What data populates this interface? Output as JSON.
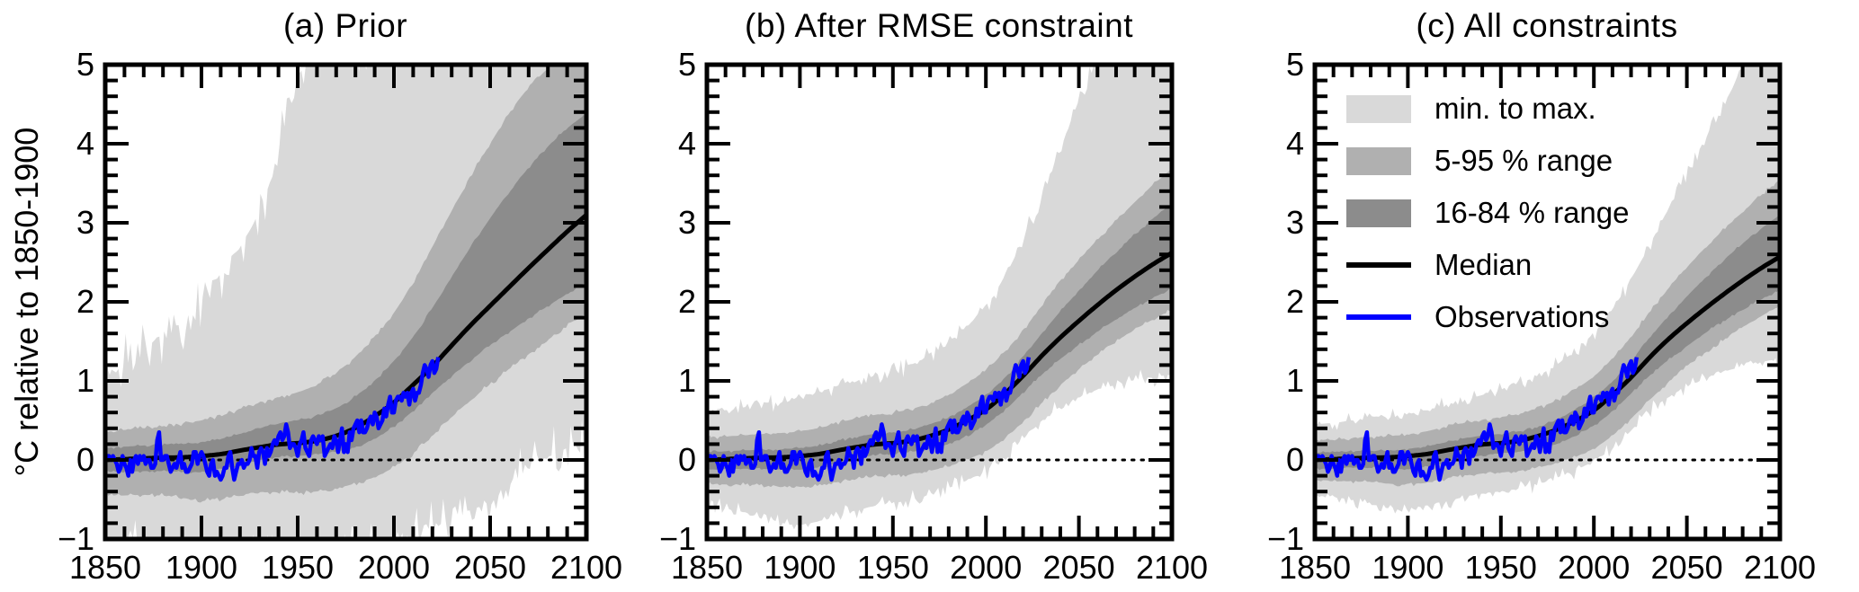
{
  "figure": {
    "y_axis_label": "°C relative to 1850-1900",
    "background": "#ffffff"
  },
  "colors": {
    "band_minmax": "#d9d9d9",
    "band_5_95": "#b0b0b0",
    "band_16_84": "#8c8c8c",
    "median": "#000000",
    "observations": "#0000ff",
    "axis": "#000000"
  },
  "chart_data": {
    "type": "area",
    "xlim": [
      1850,
      2100
    ],
    "ylim": [
      -1,
      5
    ],
    "x_ticks_major": [
      1850,
      1900,
      1950,
      2000,
      2050,
      2100
    ],
    "x_tick_minor_step": 10,
    "y_ticks_major": [
      -1,
      0,
      1,
      2,
      3,
      4,
      5
    ],
    "y_tick_labels": [
      "−1",
      "0",
      "1",
      "2",
      "3",
      "4",
      "5"
    ],
    "y_tick_minor_step": 0.2,
    "zero_line": 0,
    "grid": false,
    "legend_position": "upper-left-panel-c",
    "legend": [
      {
        "label": "min. to max.",
        "type": "patch",
        "color_key": "band_minmax"
      },
      {
        "label": "5-95 % range",
        "type": "patch",
        "color_key": "band_5_95"
      },
      {
        "label": "16-84 % range",
        "type": "patch",
        "color_key": "band_16_84"
      },
      {
        "label": "Median",
        "type": "line",
        "color_key": "median"
      },
      {
        "label": "Observations",
        "type": "line",
        "color_key": "observations"
      }
    ],
    "band_years": [
      1850,
      1860,
      1870,
      1880,
      1890,
      1900,
      1910,
      1920,
      1930,
      1940,
      1950,
      1960,
      1970,
      1980,
      1990,
      2000,
      2010,
      2020,
      2030,
      2040,
      2050,
      2060,
      2070,
      2080,
      2090,
      2100
    ],
    "panels": [
      {
        "title": "(a) Prior",
        "edge_jitter": 0.4,
        "mid_jitter": 0.035,
        "inner_jitter": 0.02,
        "min": [
          -1.2,
          -1.15,
          -1.1,
          -1.15,
          -1.2,
          -1.2,
          -1.15,
          -1.2,
          -1.2,
          -1.2,
          -1.2,
          -1.2,
          -1.2,
          -1.18,
          -1.15,
          -1.1,
          -1.0,
          -0.85,
          -0.72,
          -0.63,
          -0.55,
          -0.32,
          -0.1,
          0.05,
          0.15,
          0.25
        ],
        "p5": [
          -0.45,
          -0.45,
          -0.44,
          -0.45,
          -0.48,
          -0.52,
          -0.5,
          -0.45,
          -0.42,
          -0.4,
          -0.42,
          -0.4,
          -0.36,
          -0.3,
          -0.22,
          -0.1,
          0.08,
          0.3,
          0.55,
          0.76,
          0.96,
          1.15,
          1.34,
          1.52,
          1.69,
          1.85
        ],
        "p16": [
          -0.15,
          -0.15,
          -0.14,
          -0.14,
          -0.15,
          -0.16,
          -0.12,
          -0.06,
          0.0,
          0.04,
          0.05,
          0.07,
          0.1,
          0.16,
          0.26,
          0.42,
          0.62,
          0.85,
          1.06,
          1.26,
          1.45,
          1.62,
          1.79,
          1.95,
          2.1,
          2.25
        ],
        "median": [
          0.0,
          0.01,
          0.02,
          0.03,
          0.03,
          0.05,
          0.07,
          0.12,
          0.16,
          0.2,
          0.21,
          0.24,
          0.3,
          0.4,
          0.55,
          0.72,
          0.95,
          1.18,
          1.45,
          1.71,
          1.95,
          2.19,
          2.43,
          2.66,
          2.89,
          3.1
        ],
        "p84": [
          0.15,
          0.17,
          0.18,
          0.2,
          0.2,
          0.22,
          0.26,
          0.33,
          0.4,
          0.47,
          0.5,
          0.55,
          0.65,
          0.8,
          1.0,
          1.25,
          1.55,
          1.92,
          2.32,
          2.7,
          3.06,
          3.4,
          3.7,
          3.97,
          4.2,
          4.38
        ],
        "p95": [
          0.35,
          0.38,
          0.4,
          0.45,
          0.46,
          0.5,
          0.55,
          0.65,
          0.72,
          0.8,
          0.85,
          0.95,
          1.1,
          1.3,
          1.55,
          1.85,
          2.25,
          2.7,
          3.15,
          3.6,
          4.0,
          4.4,
          4.72,
          4.95,
          5.15,
          5.3
        ],
        "max": [
          1.05,
          1.2,
          1.35,
          1.65,
          1.55,
          2.05,
          2.35,
          2.7,
          3.1,
          3.9,
          4.9,
          5.3,
          5.3,
          5.3,
          5.3,
          5.3,
          5.3,
          5.3,
          5.3,
          5.3,
          5.3,
          5.3,
          5.3,
          5.3,
          5.3,
          5.3
        ]
      },
      {
        "title": "(b) After RMSE constraint",
        "edge_jitter": 0.13,
        "mid_jitter": 0.03,
        "inner_jitter": 0.02,
        "min": [
          -0.6,
          -0.62,
          -0.66,
          -0.73,
          -0.8,
          -0.83,
          -0.78,
          -0.7,
          -0.64,
          -0.58,
          -0.55,
          -0.5,
          -0.44,
          -0.36,
          -0.26,
          -0.14,
          0.03,
          0.26,
          0.5,
          0.68,
          0.8,
          0.89,
          0.96,
          1.01,
          1.05,
          1.08
        ],
        "p5": [
          -0.3,
          -0.31,
          -0.31,
          -0.32,
          -0.34,
          -0.36,
          -0.33,
          -0.28,
          -0.24,
          -0.21,
          -0.2,
          -0.18,
          -0.14,
          -0.08,
          0.0,
          0.1,
          0.26,
          0.48,
          0.72,
          0.95,
          1.15,
          1.33,
          1.5,
          1.65,
          1.78,
          1.9
        ],
        "p16": [
          -0.12,
          -0.12,
          -0.11,
          -0.11,
          -0.12,
          -0.13,
          -0.1,
          -0.04,
          0.02,
          0.06,
          0.08,
          0.1,
          0.14,
          0.2,
          0.3,
          0.44,
          0.62,
          0.85,
          1.08,
          1.28,
          1.46,
          1.62,
          1.78,
          1.92,
          2.05,
          2.17
        ],
        "median": [
          0.0,
          0.01,
          0.02,
          0.03,
          0.03,
          0.05,
          0.07,
          0.12,
          0.16,
          0.2,
          0.21,
          0.24,
          0.3,
          0.38,
          0.5,
          0.63,
          0.83,
          1.06,
          1.32,
          1.55,
          1.76,
          1.96,
          2.15,
          2.32,
          2.48,
          2.62
        ],
        "p84": [
          0.1,
          0.11,
          0.12,
          0.13,
          0.13,
          0.15,
          0.18,
          0.24,
          0.29,
          0.33,
          0.35,
          0.38,
          0.45,
          0.54,
          0.67,
          0.82,
          1.03,
          1.3,
          1.6,
          1.88,
          2.14,
          2.4,
          2.63,
          2.85,
          3.06,
          3.25
        ],
        "p95": [
          0.28,
          0.3,
          0.31,
          0.33,
          0.34,
          0.36,
          0.4,
          0.47,
          0.52,
          0.57,
          0.6,
          0.64,
          0.72,
          0.82,
          0.97,
          1.13,
          1.36,
          1.63,
          1.96,
          2.26,
          2.53,
          2.79,
          3.03,
          3.26,
          3.49,
          3.7
        ],
        "max": [
          0.6,
          0.63,
          0.66,
          0.74,
          0.7,
          0.8,
          0.86,
          0.93,
          0.99,
          1.06,
          1.12,
          1.2,
          1.32,
          1.48,
          1.68,
          1.95,
          2.3,
          2.78,
          3.35,
          3.95,
          4.55,
          5.1,
          5.3,
          5.3,
          5.3,
          5.3
        ]
      },
      {
        "title": "(c) All constraints",
        "edge_jitter": 0.11,
        "mid_jitter": 0.03,
        "inner_jitter": 0.02,
        "min": [
          -0.45,
          -0.47,
          -0.5,
          -0.56,
          -0.62,
          -0.63,
          -0.58,
          -0.52,
          -0.47,
          -0.42,
          -0.4,
          -0.36,
          -0.3,
          -0.23,
          -0.14,
          -0.02,
          0.14,
          0.37,
          0.62,
          0.8,
          0.93,
          1.03,
          1.12,
          1.18,
          1.24,
          1.28
        ],
        "p5": [
          -0.26,
          -0.27,
          -0.27,
          -0.28,
          -0.3,
          -0.32,
          -0.29,
          -0.24,
          -0.2,
          -0.17,
          -0.16,
          -0.14,
          -0.1,
          -0.04,
          0.04,
          0.14,
          0.3,
          0.52,
          0.76,
          0.98,
          1.18,
          1.36,
          1.53,
          1.68,
          1.82,
          1.95
        ],
        "p16": [
          -0.11,
          -0.11,
          -0.1,
          -0.1,
          -0.11,
          -0.12,
          -0.09,
          -0.03,
          0.02,
          0.06,
          0.08,
          0.1,
          0.14,
          0.2,
          0.3,
          0.43,
          0.61,
          0.84,
          1.07,
          1.27,
          1.44,
          1.61,
          1.76,
          1.9,
          2.03,
          2.15
        ],
        "median": [
          0.0,
          0.01,
          0.02,
          0.03,
          0.03,
          0.05,
          0.07,
          0.12,
          0.16,
          0.2,
          0.21,
          0.24,
          0.3,
          0.38,
          0.49,
          0.62,
          0.82,
          1.04,
          1.3,
          1.53,
          1.73,
          1.92,
          2.1,
          2.27,
          2.43,
          2.57
        ],
        "p84": [
          0.09,
          0.1,
          0.11,
          0.12,
          0.12,
          0.14,
          0.17,
          0.22,
          0.27,
          0.31,
          0.33,
          0.36,
          0.42,
          0.51,
          0.63,
          0.78,
          0.99,
          1.25,
          1.55,
          1.82,
          2.07,
          2.31,
          2.53,
          2.74,
          2.93,
          3.1
        ],
        "p95": [
          0.25,
          0.26,
          0.27,
          0.29,
          0.3,
          0.32,
          0.36,
          0.42,
          0.47,
          0.51,
          0.54,
          0.58,
          0.65,
          0.75,
          0.89,
          1.05,
          1.28,
          1.55,
          1.88,
          2.17,
          2.44,
          2.69,
          2.92,
          3.14,
          3.35,
          3.55
        ],
        "max": [
          0.45,
          0.47,
          0.5,
          0.56,
          0.53,
          0.58,
          0.63,
          0.7,
          0.76,
          0.82,
          0.88,
          0.96,
          1.06,
          1.2,
          1.38,
          1.6,
          1.9,
          2.28,
          2.72,
          3.18,
          3.62,
          4.06,
          4.5,
          4.95,
          5.3,
          5.3
        ]
      }
    ],
    "observations": {
      "start_year": 1850,
      "step": 1,
      "values": [
        0.0,
        0.05,
        0.05,
        0.0,
        0.05,
        0.0,
        -0.05,
        -0.15,
        -0.1,
        0.05,
        -0.05,
        -0.1,
        -0.2,
        0.0,
        -0.15,
        0.0,
        0.05,
        -0.05,
        0.05,
        0.0,
        0.05,
        -0.05,
        0.0,
        0.0,
        -0.1,
        -0.1,
        -0.05,
        0.25,
        0.35,
        0.0,
        0.0,
        0.05,
        0.05,
        -0.05,
        -0.15,
        -0.1,
        -0.05,
        -0.1,
        0.0,
        0.1,
        -0.1,
        -0.05,
        -0.15,
        -0.15,
        -0.1,
        -0.05,
        0.1,
        0.1,
        -0.05,
        0.05,
        0.1,
        0.05,
        -0.05,
        -0.15,
        -0.2,
        -0.05,
        0.0,
        -0.2,
        -0.15,
        -0.2,
        -0.25,
        -0.2,
        -0.1,
        -0.1,
        0.05,
        0.1,
        -0.1,
        -0.25,
        -0.15,
        -0.05,
        -0.05,
        0.0,
        -0.1,
        -0.05,
        -0.05,
        0.0,
        0.15,
        0.05,
        0.05,
        -0.1,
        0.1,
        0.15,
        0.1,
        -0.05,
        0.15,
        0.05,
        0.1,
        0.2,
        0.25,
        0.2,
        0.3,
        0.35,
        0.25,
        0.3,
        0.45,
        0.35,
        0.15,
        0.2,
        0.2,
        0.15,
        0.05,
        0.2,
        0.25,
        0.35,
        0.15,
        0.1,
        0.05,
        0.25,
        0.3,
        0.25,
        0.2,
        0.3,
        0.25,
        0.3,
        0.05,
        0.1,
        0.15,
        0.2,
        0.15,
        0.3,
        0.25,
        0.1,
        0.25,
        0.4,
        0.1,
        0.2,
        0.1,
        0.35,
        0.25,
        0.4,
        0.45,
        0.5,
        0.35,
        0.5,
        0.35,
        0.35,
        0.4,
        0.5,
        0.55,
        0.45,
        0.6,
        0.55,
        0.4,
        0.45,
        0.5,
        0.65,
        0.55,
        0.7,
        0.8,
        0.6,
        0.6,
        0.75,
        0.8,
        0.8,
        0.75,
        0.85,
        0.8,
        0.85,
        0.7,
        0.85,
        0.9,
        0.75,
        0.85,
        0.85,
        0.95,
        1.1,
        1.2,
        1.15,
        1.05,
        1.2,
        1.25,
        1.1,
        1.15,
        1.3
      ]
    }
  }
}
